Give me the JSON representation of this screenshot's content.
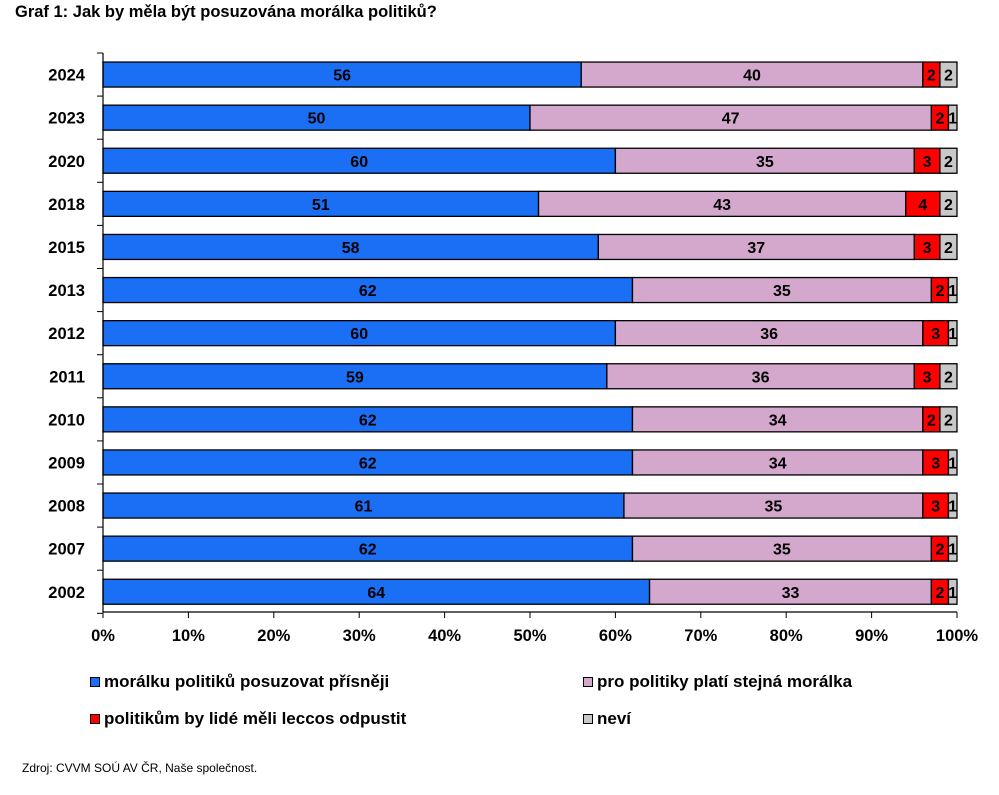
{
  "title": "Graf 1: Jak by měla být posuzována morálka politiků?",
  "source": "Zdroj: CVVM SOÚ AV ČR, Naše společnost.",
  "chart_data": {
    "type": "bar",
    "orientation": "horizontal",
    "stacked": true,
    "categories": [
      "2024",
      "2023",
      "2020",
      "2018",
      "2015",
      "2013",
      "2012",
      "2011",
      "2010",
      "2009",
      "2008",
      "2007",
      "2002"
    ],
    "series": [
      {
        "name": "morálku politiků posuzovat přísněji",
        "color": "#1a6ff5",
        "values": [
          56,
          50,
          60,
          51,
          58,
          62,
          60,
          59,
          62,
          62,
          61,
          62,
          64
        ]
      },
      {
        "name": "pro politiky platí stejná morálka",
        "color": "#d4a8cc",
        "values": [
          40,
          47,
          35,
          43,
          37,
          35,
          36,
          36,
          34,
          34,
          35,
          35,
          33
        ]
      },
      {
        "name": "politikům by lidé měli leccos odpustit",
        "color": "#ff0000",
        "values": [
          2,
          2,
          3,
          4,
          3,
          2,
          3,
          3,
          2,
          3,
          3,
          2,
          2
        ]
      },
      {
        "name": "neví",
        "color": "#c8c8c8",
        "values": [
          2,
          1,
          2,
          2,
          2,
          1,
          1,
          2,
          2,
          1,
          1,
          1,
          1
        ]
      }
    ],
    "xlim": [
      0,
      100
    ],
    "xticks": [
      "0%",
      "10%",
      "20%",
      "30%",
      "40%",
      "50%",
      "60%",
      "70%",
      "80%",
      "90%",
      "100%"
    ],
    "grid": false,
    "legend": "bottom"
  }
}
